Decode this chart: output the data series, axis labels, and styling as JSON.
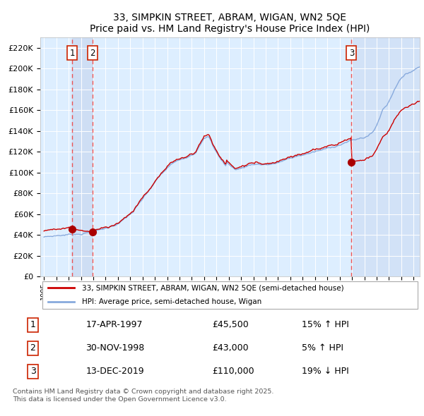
{
  "title": "33, SIMPKIN STREET, ABRAM, WIGAN, WN2 5QE",
  "subtitle": "Price paid vs. HM Land Registry's House Price Index (HPI)",
  "ylabel_ticks": [
    "£0",
    "£20K",
    "£40K",
    "£60K",
    "£80K",
    "£100K",
    "£120K",
    "£140K",
    "£160K",
    "£180K",
    "£200K",
    "£220K"
  ],
  "ytick_values": [
    0,
    20000,
    40000,
    60000,
    80000,
    100000,
    120000,
    140000,
    160000,
    180000,
    200000,
    220000
  ],
  "ylim": [
    0,
    230000
  ],
  "xlim_start": 1994.7,
  "xlim_end": 2025.5,
  "sale_dates": [
    1997.29,
    1998.92,
    2019.96
  ],
  "sale_prices": [
    45500,
    43000,
    110000
  ],
  "sale_labels": [
    "1",
    "2",
    "3"
  ],
  "legend_line1": "33, SIMPKIN STREET, ABRAM, WIGAN, WN2 5QE (semi-detached house)",
  "legend_line2": "HPI: Average price, semi-detached house, Wigan",
  "annotation1_date": "17-APR-1997",
  "annotation1_price": "£45,500",
  "annotation1_hpi": "15% ↑ HPI",
  "annotation2_date": "30-NOV-1998",
  "annotation2_price": "£43,000",
  "annotation2_hpi": "5% ↑ HPI",
  "annotation3_date": "13-DEC-2019",
  "annotation3_price": "£110,000",
  "annotation3_hpi": "19% ↓ HPI",
  "footer": "Contains HM Land Registry data © Crown copyright and database right 2025.\nThis data is licensed under the Open Government Licence v3.0.",
  "price_line_color": "#cc0000",
  "hpi_line_color": "#88aadd",
  "background_color": "#ddeeff",
  "sale_dot_color": "#aa0000",
  "vline_color": "#ee4444",
  "box_edge_color": "#cc2200",
  "shade_color": "#c8d8f0"
}
